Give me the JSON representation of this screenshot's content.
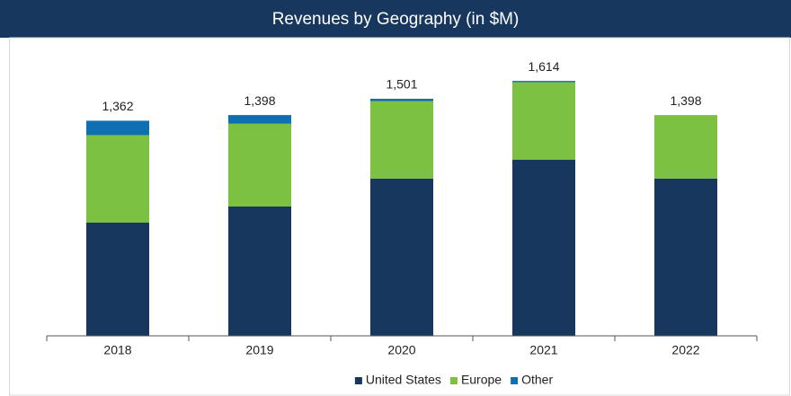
{
  "chart_data": {
    "type": "stacked_bar",
    "title": "Revenues by Geography (in $M)",
    "categories": [
      "2018",
      "2019",
      "2020",
      "2021",
      "2022"
    ],
    "series": [
      {
        "name": "United States",
        "color": "#17375e",
        "values": [
          718,
          819,
          996,
          1116,
          996
        ]
      },
      {
        "name": "Europe",
        "color": "#7cc142",
        "values": [
          553,
          524,
          490,
          490,
          402
        ]
      },
      {
        "name": "Other",
        "color": "#0f6fb0",
        "values": [
          91,
          55,
          15,
          8,
          0
        ]
      }
    ],
    "totals": [
      1362,
      1398,
      1501,
      1614,
      1398
    ],
    "total_labels": [
      "1,362",
      "1,398",
      "1,501",
      "1,614",
      "1,398"
    ],
    "ylim": [
      0,
      1700
    ]
  }
}
